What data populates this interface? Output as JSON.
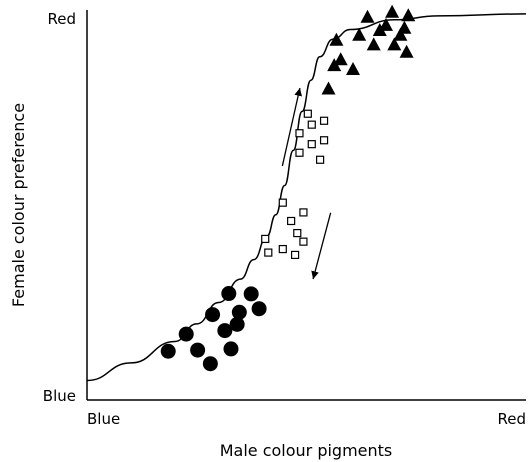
{
  "chart_data": {
    "type": "scatter",
    "xlabel": "Male colour pigments",
    "ylabel": "Female colour preference",
    "x_ticks": {
      "min": "Blue",
      "max": "Red"
    },
    "y_ticks": {
      "min": "Blue",
      "max": "Red"
    },
    "xlim": [
      0,
      100
    ],
    "ylim": [
      0,
      100
    ],
    "grid": false,
    "legend": "none",
    "series": [
      {
        "marker": "circle",
        "fill": "filled",
        "points": [
          [
            18.5,
            12.5
          ],
          [
            22.6,
            16.9
          ],
          [
            28.6,
            21.9
          ],
          [
            32.3,
            27.3
          ],
          [
            25.2,
            12.8
          ],
          [
            28.1,
            9.3
          ],
          [
            31.4,
            17.8
          ],
          [
            34.2,
            19.4
          ],
          [
            32.8,
            13.1
          ],
          [
            34.7,
            22.5
          ],
          [
            37.4,
            27.2
          ],
          [
            39.2,
            23.4
          ]
        ]
      },
      {
        "marker": "square",
        "fill": "open",
        "points": [
          [
            40.6,
            41.3
          ],
          [
            41.3,
            37.8
          ],
          [
            44.6,
            38.7
          ],
          [
            44.6,
            50.6
          ],
          [
            46.5,
            45.9
          ],
          [
            47.9,
            42.8
          ],
          [
            49.3,
            48.1
          ],
          [
            49.3,
            40.6
          ],
          [
            48.4,
            63.4
          ],
          [
            48.4,
            68.4
          ],
          [
            50.3,
            73.4
          ],
          [
            51.2,
            65.6
          ],
          [
            51.2,
            70.6
          ],
          [
            53.1,
            61.6
          ],
          [
            54.0,
            66.6
          ],
          [
            54.0,
            71.6
          ],
          [
            47.4,
            37.2
          ]
        ]
      },
      {
        "marker": "triangle",
        "fill": "filled",
        "points": [
          [
            55.0,
            80.0
          ],
          [
            56.8,
            92.5
          ],
          [
            57.8,
            87.5
          ],
          [
            60.6,
            85.0
          ],
          [
            62.0,
            93.8
          ],
          [
            63.9,
            98.4
          ],
          [
            65.3,
            91.3
          ],
          [
            66.7,
            95.0
          ],
          [
            68.1,
            96.3
          ],
          [
            69.5,
            99.7
          ],
          [
            70.0,
            91.3
          ],
          [
            71.4,
            93.8
          ],
          [
            72.3,
            95.6
          ],
          [
            72.8,
            89.4
          ],
          [
            73.2,
            98.8
          ],
          [
            56.3,
            86.0
          ]
        ]
      }
    ],
    "curve": {
      "type": "sigmoid",
      "points": [
        [
          0,
          5.0
        ],
        [
          10,
          9.5
        ],
        [
          20,
          15.0
        ],
        [
          25,
          19.5
        ],
        [
          30,
          25.0
        ],
        [
          35,
          31.0
        ],
        [
          38,
          36.0
        ],
        [
          41,
          42.0
        ],
        [
          43,
          47.5
        ],
        [
          45,
          55.0
        ],
        [
          47,
          64.0
        ],
        [
          49,
          74.0
        ],
        [
          51,
          82.0
        ],
        [
          53,
          88.0
        ],
        [
          56,
          92.5
        ],
        [
          60,
          95.0
        ],
        [
          70,
          97.5
        ],
        [
          80,
          98.5
        ],
        [
          100,
          99.0
        ]
      ]
    },
    "arrows": [
      {
        "direction": "up",
        "from": [
          44.5,
          60.0
        ],
        "to": [
          48.5,
          80.0
        ]
      },
      {
        "direction": "down",
        "from": [
          55.5,
          48.0
        ],
        "to": [
          51.5,
          31.0
        ]
      }
    ]
  }
}
